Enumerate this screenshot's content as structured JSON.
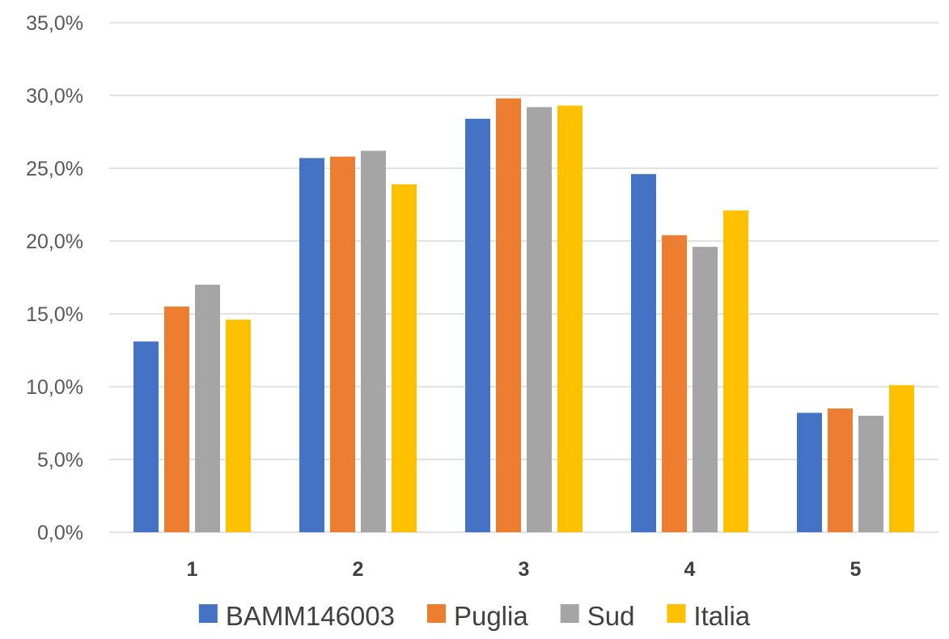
{
  "chart_data": {
    "type": "bar",
    "title": "",
    "xlabel": "",
    "ylabel": "",
    "categories": [
      "1",
      "2",
      "3",
      "4",
      "5"
    ],
    "series": [
      {
        "name": "BAMM146003",
        "color": "#4472C4",
        "values": [
          13.1,
          25.7,
          28.4,
          24.6,
          8.2
        ]
      },
      {
        "name": "Puglia",
        "color": "#ED7D31",
        "values": [
          15.5,
          25.8,
          29.8,
          20.4,
          8.5
        ]
      },
      {
        "name": "Sud",
        "color": "#A5A5A5",
        "values": [
          17.0,
          26.2,
          29.2,
          19.6,
          8.0
        ]
      },
      {
        "name": "Italia",
        "color": "#FFC000",
        "values": [
          14.6,
          23.9,
          29.3,
          22.1,
          10.1
        ]
      }
    ],
    "ylim": [
      0,
      35
    ],
    "yticks": [
      0,
      5,
      10,
      15,
      20,
      25,
      30,
      35
    ],
    "ytick_labels": [
      "0,0%",
      "5,0%",
      "10,0%",
      "15,0%",
      "20,0%",
      "25,0%",
      "30,0%",
      "35,0%"
    ],
    "grid": true,
    "legend_position": "bottom"
  }
}
